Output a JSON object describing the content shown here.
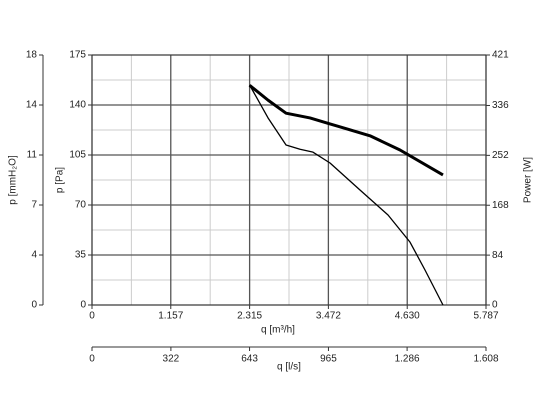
{
  "chart_data": {
    "type": "line",
    "x_label": "q [m³/h]",
    "x2_label": "q [l/s]",
    "y_label": "p [Pa]",
    "y3_label": "p [mmH₂O]",
    "y2_label": "Power [W]",
    "xlim": [
      0,
      5787
    ],
    "xticks": [
      0,
      {
        "value": 1157,
        "label": "1.157"
      },
      {
        "value": 2315,
        "label": "2.315"
      },
      {
        "value": 3472,
        "label": "3.472"
      },
      {
        "value": 4630,
        "label": "4.630"
      },
      {
        "value": 5787,
        "label": "5.787"
      }
    ],
    "x2lim": [
      0,
      1608
    ],
    "x2ticks": [
      0,
      322,
      643,
      965,
      {
        "value": 1286,
        "label": "1.286"
      },
      {
        "value": 1608,
        "label": "1.608"
      }
    ],
    "ylim": [
      0,
      175
    ],
    "yticks": [
      0,
      35,
      70,
      105,
      140,
      175
    ],
    "y3lim": [
      0,
      17.85
    ],
    "y3ticks": [
      0,
      {
        "value": 3.57,
        "label": "4"
      },
      {
        "value": 7.14,
        "label": "7"
      },
      {
        "value": 10.71,
        "label": "11"
      },
      {
        "value": 14.28,
        "label": "14"
      },
      {
        "value": 17.85,
        "label": "18"
      }
    ],
    "y2lim": [
      0,
      421
    ],
    "y2ticks": [
      0,
      84,
      168,
      252,
      336,
      421
    ],
    "grid": true,
    "series": [
      {
        "name": "p",
        "color": "#000000",
        "x": [
          2315,
          2585,
          2850,
          3055,
          3246,
          3496,
          3936,
          4348,
          4671,
          4891,
          5155
        ],
        "values": [
          154,
          131,
          112,
          109,
          107,
          99.4,
          80.5,
          63,
          44,
          24.5,
          0
        ]
      },
      {
        "name": "Power",
        "color": "#000000",
        "axis": "y2",
        "x": [
          2315,
          2585,
          2850,
          3202,
          3496,
          4083,
          4524,
          5155
        ],
        "values": [
          370,
          345,
          323,
          315,
          305,
          285,
          261,
          219
        ]
      }
    ]
  }
}
